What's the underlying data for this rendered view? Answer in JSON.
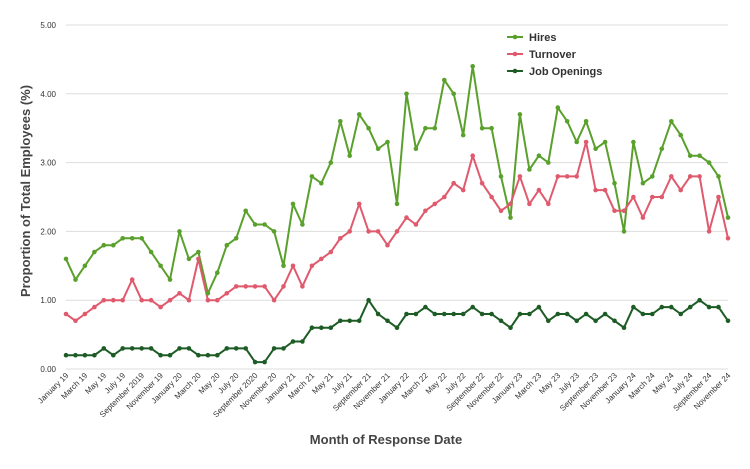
{
  "chart_data": {
    "type": "line",
    "title": "",
    "xlabel": "Month of Response Date",
    "ylabel": "Proportion of Total Employees (%)",
    "ylim": [
      0,
      5
    ],
    "yticks": [
      "0.00",
      "1.00",
      "2.00",
      "3.00",
      "4.00",
      "5.00"
    ],
    "grid": true,
    "legend_position": "top-right",
    "x": [
      "January 19",
      "February 19",
      "March 19",
      "April 19",
      "May 19",
      "June 19",
      "July 19",
      "August 19",
      "September 2019",
      "October 19",
      "November 19",
      "December 19",
      "January 20",
      "February 20",
      "March 20",
      "April 20",
      "May 20",
      "June 20",
      "July 20",
      "August 20",
      "September 2020",
      "October 20",
      "November 20",
      "December 20",
      "January 21",
      "February 21",
      "March 21",
      "April 21",
      "May 21",
      "June 21",
      "July 21",
      "August 21",
      "September 21",
      "October 21",
      "November 21",
      "December 21",
      "January 22",
      "February 22",
      "March 22",
      "April 22",
      "May 22",
      "June 22",
      "July 22",
      "August 22",
      "September 22",
      "October 22",
      "November 22",
      "December 22",
      "January 23",
      "February 23",
      "March 23",
      "April 23",
      "May 23",
      "June 23",
      "July 23",
      "August 23",
      "September 23",
      "October 23",
      "November 23",
      "December 23",
      "January 24",
      "February 24",
      "March 24",
      "April 24",
      "May 24",
      "June 24",
      "July 24",
      "August 24",
      "September 24",
      "October 24",
      "November 24"
    ],
    "x_tick_labels": [
      "January 19",
      "March 19",
      "May 19",
      "July 19",
      "September 2019",
      "November 19",
      "January 20",
      "March 20",
      "May 20",
      "July 20",
      "September 2020",
      "November 20",
      "January 21",
      "March 21",
      "May 21",
      "July 21",
      "September 21",
      "November 21",
      "January 22",
      "March 22",
      "May 22",
      "July 22",
      "September 22",
      "November 22",
      "January 23",
      "March 23",
      "May 23",
      "July 23",
      "September 23",
      "November 23",
      "January 24",
      "March 24",
      "May 24",
      "July 24",
      "September 24",
      "November 24"
    ],
    "series": [
      {
        "name": "Hires",
        "color": "#5aa02c",
        "values": [
          1.6,
          1.3,
          1.5,
          1.7,
          1.8,
          1.8,
          1.9,
          1.9,
          1.9,
          1.7,
          1.5,
          1.3,
          2.0,
          1.6,
          1.7,
          1.1,
          1.4,
          1.8,
          1.9,
          2.3,
          2.1,
          2.1,
          2.0,
          1.5,
          2.4,
          2.1,
          2.8,
          2.7,
          3.0,
          3.6,
          3.1,
          3.7,
          3.5,
          3.2,
          3.3,
          2.4,
          4.0,
          3.2,
          3.5,
          3.5,
          4.2,
          4.0,
          3.4,
          4.4,
          3.5,
          3.5,
          2.8,
          2.2,
          3.7,
          2.9,
          3.1,
          3.0,
          3.8,
          3.6,
          3.3,
          3.6,
          3.2,
          3.3,
          2.7,
          2.0,
          3.3,
          2.7,
          2.8,
          3.2,
          3.6,
          3.4,
          3.1,
          3.1,
          3.0,
          2.8,
          2.2
        ]
      },
      {
        "name": "Turnover",
        "color": "#e05a6e",
        "values": [
          0.8,
          0.7,
          0.8,
          0.9,
          1.0,
          1.0,
          1.0,
          1.3,
          1.0,
          1.0,
          0.9,
          1.0,
          1.1,
          1.0,
          1.6,
          1.0,
          1.0,
          1.1,
          1.2,
          1.2,
          1.2,
          1.2,
          1.0,
          1.2,
          1.5,
          1.2,
          1.5,
          1.6,
          1.7,
          1.9,
          2.0,
          2.4,
          2.0,
          2.0,
          1.8,
          2.0,
          2.2,
          2.1,
          2.3,
          2.4,
          2.5,
          2.7,
          2.6,
          3.1,
          2.7,
          2.5,
          2.3,
          2.4,
          2.8,
          2.4,
          2.6,
          2.4,
          2.8,
          2.8,
          2.8,
          3.3,
          2.6,
          2.6,
          2.3,
          2.3,
          2.5,
          2.2,
          2.5,
          2.5,
          2.8,
          2.6,
          2.8,
          2.8,
          2.0,
          2.5,
          1.9
        ]
      },
      {
        "name": "Job Openings",
        "color": "#1e5c26",
        "values": [
          0.2,
          0.2,
          0.2,
          0.2,
          0.3,
          0.2,
          0.3,
          0.3,
          0.3,
          0.3,
          0.2,
          0.2,
          0.3,
          0.3,
          0.2,
          0.2,
          0.2,
          0.3,
          0.3,
          0.3,
          0.1,
          0.1,
          0.3,
          0.3,
          0.4,
          0.4,
          0.6,
          0.6,
          0.6,
          0.7,
          0.7,
          0.7,
          1.0,
          0.8,
          0.7,
          0.6,
          0.8,
          0.8,
          0.9,
          0.8,
          0.8,
          0.8,
          0.8,
          0.9,
          0.8,
          0.8,
          0.7,
          0.6,
          0.8,
          0.8,
          0.9,
          0.7,
          0.8,
          0.8,
          0.7,
          0.8,
          0.7,
          0.8,
          0.7,
          0.6,
          0.9,
          0.8,
          0.8,
          0.9,
          0.9,
          0.8,
          0.9,
          1.0,
          0.9,
          0.9,
          0.7
        ]
      }
    ]
  }
}
